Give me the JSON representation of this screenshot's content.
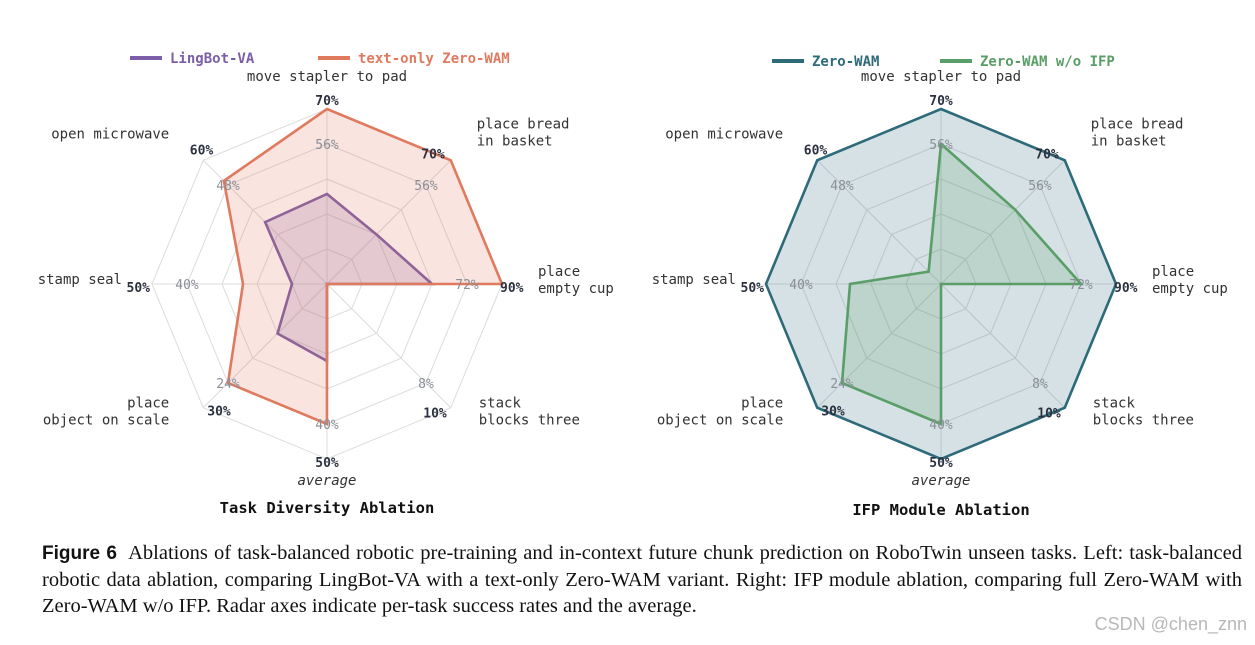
{
  "chart_data": [
    {
      "type": "radar",
      "title": "Task Diversity Ablation",
      "axes": [
        "move stapler to pad",
        "place bread\nin basket",
        "place\nempty cup",
        "stack\nblocks three",
        "average",
        "place\nobject on scale",
        "stamp seal",
        "open microwave"
      ],
      "axis_max_labels": [
        "70%",
        "70%",
        "90%",
        "10%",
        "50%",
        "30%",
        "50%",
        "60%"
      ],
      "inner_ring_labels": [
        "56%",
        "56%",
        "72%",
        "8%",
        "40%",
        "24%",
        "40%",
        "48%"
      ],
      "italic_axes": [
        "average"
      ],
      "legend_position": "top",
      "series": [
        {
          "name": "LingBot-VA",
          "color": "#7b5ea7",
          "values": [
            36,
            28,
            54,
            0,
            22,
            12,
            10,
            30
          ]
        },
        {
          "name": "text-only Zero-WAM",
          "color": "#e07a5f",
          "values": [
            70,
            70,
            90,
            0,
            40,
            24,
            24,
            50
          ]
        }
      ]
    },
    {
      "type": "radar",
      "title": "IFP Module Ablation",
      "axes": [
        "move stapler to pad",
        "place bread\nin basket",
        "place\nempty cup",
        "stack\nblocks three",
        "average",
        "place\nobject on scale",
        "stamp seal",
        "open microwave"
      ],
      "axis_max_labels": [
        "70%",
        "70%",
        "90%",
        "10%",
        "50%",
        "30%",
        "50%",
        "60%"
      ],
      "inner_ring_labels": [
        "56%",
        "56%",
        "72%",
        "8%",
        "40%",
        "24%",
        "40%",
        "48%"
      ],
      "italic_axes": [
        "average"
      ],
      "legend_position": "top",
      "series": [
        {
          "name": "Zero-WAM",
          "color": "#2e6b7a",
          "values": [
            70,
            70,
            90,
            10,
            50,
            30,
            50,
            60
          ]
        },
        {
          "name": "Zero-WAM w/o IFP",
          "color": "#5a9e67",
          "values": [
            56,
            42,
            72,
            0,
            40,
            24,
            26,
            6
          ]
        }
      ]
    }
  ],
  "caption": {
    "label": "Figure 6",
    "text": "Ablations of task-balanced robotic pre-training and in-context future chunk prediction on RoboTwin unseen tasks. Left: task-balanced robotic data ablation, comparing LingBot-VA with a text-only Zero-WAM variant. Right: IFP module ablation, comparing full Zero-WAM with Zero-WAM w/o IFP. Radar axes indicate per-task success rates and the average."
  },
  "watermark": "CSDN @chen_znn",
  "colors": {
    "grid": "#dcdcdc",
    "tick_text": "#8a8f98",
    "max_label": "#2b3140",
    "axis_text": "#333333"
  }
}
